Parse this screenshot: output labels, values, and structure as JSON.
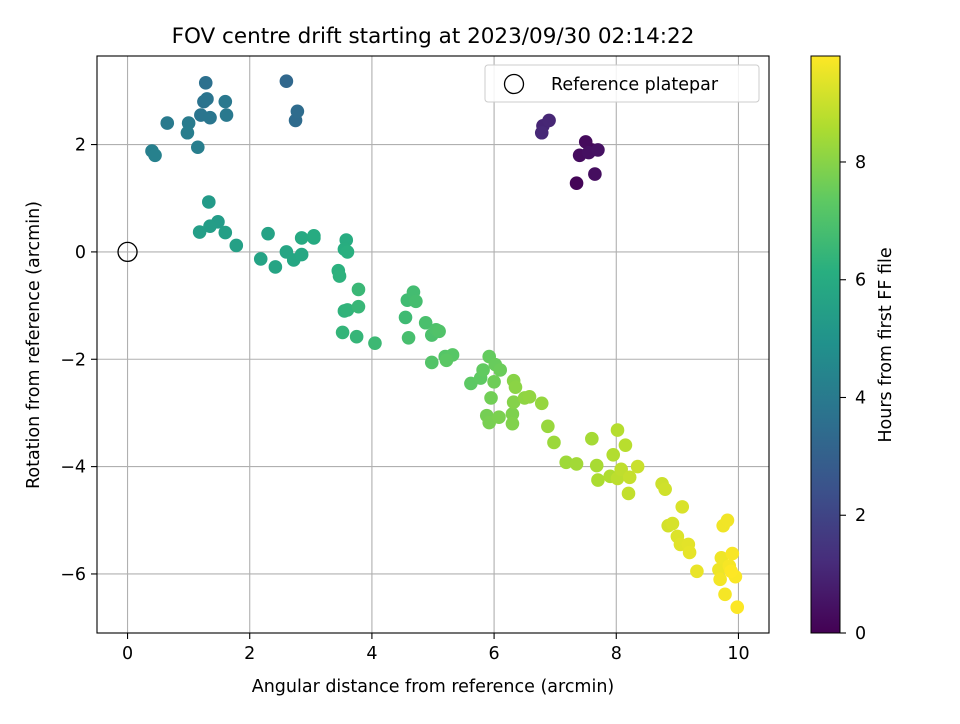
{
  "chart_data": {
    "type": "scatter",
    "title": "FOV centre drift starting at 2023/09/30 02:14:22",
    "xlabel": "Angular distance from reference (arcmin)",
    "ylabel": "Rotation from reference (arcmin)",
    "xlim": [
      -0.5,
      10.5
    ],
    "ylim": [
      -7.1,
      3.65
    ],
    "x_ticks": [
      0,
      2,
      4,
      6,
      8,
      10
    ],
    "y_ticks": [
      -6,
      -4,
      -2,
      0,
      2
    ],
    "grid": true,
    "legend_position": "top-right",
    "colorbar": {
      "label": "Hours from first FF file",
      "colormap": "viridis",
      "range": [
        0,
        9.8
      ],
      "ticks": [
        0,
        2,
        4,
        6,
        8
      ]
    },
    "reference": {
      "label": "Reference platepar",
      "x": 0,
      "y": 0
    },
    "points": [
      {
        "x": 7.35,
        "y": 1.28,
        "h": 0.1
      },
      {
        "x": 7.6,
        "y": 1.9,
        "h": 0.2
      },
      {
        "x": 7.5,
        "y": 2.05,
        "h": 0.25
      },
      {
        "x": 7.4,
        "y": 1.8,
        "h": 0.3
      },
      {
        "x": 7.65,
        "y": 1.45,
        "h": 0.35
      },
      {
        "x": 7.55,
        "y": 1.85,
        "h": 0.4
      },
      {
        "x": 7.7,
        "y": 1.9,
        "h": 0.45
      },
      {
        "x": 6.8,
        "y": 2.35,
        "h": 1.0
      },
      {
        "x": 6.9,
        "y": 2.45,
        "h": 1.05
      },
      {
        "x": 6.78,
        "y": 2.22,
        "h": 1.1
      },
      {
        "x": 2.6,
        "y": 3.18,
        "h": 3.3
      },
      {
        "x": 2.75,
        "y": 2.45,
        "h": 3.4
      },
      {
        "x": 2.78,
        "y": 2.62,
        "h": 3.45
      },
      {
        "x": 1.28,
        "y": 3.15,
        "h": 3.6
      },
      {
        "x": 1.25,
        "y": 2.8,
        "h": 3.7
      },
      {
        "x": 1.3,
        "y": 2.85,
        "h": 3.75
      },
      {
        "x": 1.2,
        "y": 2.55,
        "h": 3.8
      },
      {
        "x": 1.35,
        "y": 2.5,
        "h": 3.85
      },
      {
        "x": 1.6,
        "y": 2.8,
        "h": 3.9
      },
      {
        "x": 1.62,
        "y": 2.55,
        "h": 3.95
      },
      {
        "x": 0.65,
        "y": 2.4,
        "h": 4.0
      },
      {
        "x": 1.0,
        "y": 2.4,
        "h": 4.05
      },
      {
        "x": 0.98,
        "y": 2.22,
        "h": 4.1
      },
      {
        "x": 1.15,
        "y": 1.95,
        "h": 4.15
      },
      {
        "x": 0.4,
        "y": 1.88,
        "h": 4.2
      },
      {
        "x": 0.45,
        "y": 1.8,
        "h": 4.25
      },
      {
        "x": 1.33,
        "y": 0.93,
        "h": 5.3
      },
      {
        "x": 1.48,
        "y": 0.56,
        "h": 5.35
      },
      {
        "x": 1.35,
        "y": 0.48,
        "h": 5.4
      },
      {
        "x": 1.18,
        "y": 0.37,
        "h": 5.45
      },
      {
        "x": 1.6,
        "y": 0.36,
        "h": 5.5
      },
      {
        "x": 1.78,
        "y": 0.12,
        "h": 5.55
      },
      {
        "x": 2.3,
        "y": 0.34,
        "h": 5.6
      },
      {
        "x": 2.18,
        "y": -0.13,
        "h": 5.65
      },
      {
        "x": 2.42,
        "y": -0.28,
        "h": 5.7
      },
      {
        "x": 2.6,
        "y": 0.0,
        "h": 5.75
      },
      {
        "x": 2.72,
        "y": -0.15,
        "h": 5.8
      },
      {
        "x": 2.85,
        "y": -0.05,
        "h": 5.85
      },
      {
        "x": 2.85,
        "y": 0.26,
        "h": 5.9
      },
      {
        "x": 3.05,
        "y": 0.26,
        "h": 5.95
      },
      {
        "x": 3.05,
        "y": 0.3,
        "h": 6.0
      },
      {
        "x": 3.58,
        "y": 0.22,
        "h": 6.05
      },
      {
        "x": 3.55,
        "y": 0.05,
        "h": 6.1
      },
      {
        "x": 3.6,
        "y": 0.0,
        "h": 6.15
      },
      {
        "x": 3.45,
        "y": -0.35,
        "h": 6.2
      },
      {
        "x": 3.47,
        "y": -0.45,
        "h": 6.25
      },
      {
        "x": 3.55,
        "y": -1.1,
        "h": 6.3
      },
      {
        "x": 3.6,
        "y": -1.08,
        "h": 6.35
      },
      {
        "x": 3.52,
        "y": -1.5,
        "h": 6.4
      },
      {
        "x": 3.75,
        "y": -1.58,
        "h": 6.45
      },
      {
        "x": 3.78,
        "y": -1.02,
        "h": 6.5
      },
      {
        "x": 3.78,
        "y": -0.7,
        "h": 6.55
      },
      {
        "x": 4.05,
        "y": -1.7,
        "h": 6.6
      },
      {
        "x": 4.55,
        "y": -1.22,
        "h": 6.65
      },
      {
        "x": 4.58,
        "y": -0.9,
        "h": 6.7
      },
      {
        "x": 4.68,
        "y": -0.75,
        "h": 6.75
      },
      {
        "x": 4.72,
        "y": -0.92,
        "h": 6.8
      },
      {
        "x": 4.6,
        "y": -1.6,
        "h": 6.85
      },
      {
        "x": 4.88,
        "y": -1.32,
        "h": 6.9
      },
      {
        "x": 4.98,
        "y": -1.55,
        "h": 6.95
      },
      {
        "x": 5.05,
        "y": -1.45,
        "h": 7.0
      },
      {
        "x": 5.1,
        "y": -1.48,
        "h": 7.05
      },
      {
        "x": 4.98,
        "y": -2.06,
        "h": 7.1
      },
      {
        "x": 5.2,
        "y": -1.95,
        "h": 7.15
      },
      {
        "x": 5.32,
        "y": -1.92,
        "h": 7.2
      },
      {
        "x": 5.22,
        "y": -2.02,
        "h": 7.25
      },
      {
        "x": 5.62,
        "y": -2.45,
        "h": 7.3
      },
      {
        "x": 5.78,
        "y": -2.35,
        "h": 7.35
      },
      {
        "x": 5.82,
        "y": -2.2,
        "h": 7.4
      },
      {
        "x": 5.92,
        "y": -1.95,
        "h": 7.45
      },
      {
        "x": 6.02,
        "y": -2.1,
        "h": 7.5
      },
      {
        "x": 6.1,
        "y": -2.2,
        "h": 7.55
      },
      {
        "x": 6.0,
        "y": -2.42,
        "h": 7.6
      },
      {
        "x": 5.95,
        "y": -2.72,
        "h": 7.65
      },
      {
        "x": 5.88,
        "y": -3.05,
        "h": 7.7
      },
      {
        "x": 5.92,
        "y": -3.18,
        "h": 7.75
      },
      {
        "x": 6.08,
        "y": -3.08,
        "h": 7.8
      },
      {
        "x": 6.3,
        "y": -3.02,
        "h": 7.85
      },
      {
        "x": 6.3,
        "y": -3.2,
        "h": 7.9
      },
      {
        "x": 6.32,
        "y": -2.8,
        "h": 7.95
      },
      {
        "x": 6.32,
        "y": -2.4,
        "h": 8.0
      },
      {
        "x": 6.35,
        "y": -2.52,
        "h": 8.05
      },
      {
        "x": 6.5,
        "y": -2.72,
        "h": 8.1
      },
      {
        "x": 6.58,
        "y": -2.7,
        "h": 8.15
      },
      {
        "x": 6.78,
        "y": -2.82,
        "h": 8.2
      },
      {
        "x": 6.88,
        "y": -3.25,
        "h": 8.25
      },
      {
        "x": 6.98,
        "y": -3.55,
        "h": 8.3
      },
      {
        "x": 7.18,
        "y": -3.92,
        "h": 8.35
      },
      {
        "x": 7.35,
        "y": -3.95,
        "h": 8.4
      },
      {
        "x": 7.6,
        "y": -3.48,
        "h": 8.45
      },
      {
        "x": 7.68,
        "y": -3.98,
        "h": 8.5
      },
      {
        "x": 7.7,
        "y": -4.25,
        "h": 8.55
      },
      {
        "x": 7.9,
        "y": -4.18,
        "h": 8.6
      },
      {
        "x": 7.95,
        "y": -3.78,
        "h": 8.65
      },
      {
        "x": 8.02,
        "y": -3.32,
        "h": 8.7
      },
      {
        "x": 8.15,
        "y": -3.6,
        "h": 8.75
      },
      {
        "x": 8.02,
        "y": -4.22,
        "h": 8.8
      },
      {
        "x": 8.08,
        "y": -4.05,
        "h": 8.85
      },
      {
        "x": 8.2,
        "y": -4.5,
        "h": 8.9
      },
      {
        "x": 8.22,
        "y": -4.2,
        "h": 8.95
      },
      {
        "x": 8.35,
        "y": -4.0,
        "h": 9.0
      },
      {
        "x": 8.75,
        "y": -4.32,
        "h": 9.05
      },
      {
        "x": 8.8,
        "y": -4.42,
        "h": 9.1
      },
      {
        "x": 8.85,
        "y": -5.1,
        "h": 9.15
      },
      {
        "x": 8.92,
        "y": -5.06,
        "h": 9.2
      },
      {
        "x": 9.08,
        "y": -4.75,
        "h": 9.25
      },
      {
        "x": 9.0,
        "y": -5.3,
        "h": 9.3
      },
      {
        "x": 9.05,
        "y": -5.45,
        "h": 9.35
      },
      {
        "x": 9.18,
        "y": -5.45,
        "h": 9.4
      },
      {
        "x": 9.2,
        "y": -5.6,
        "h": 9.45
      },
      {
        "x": 9.32,
        "y": -5.95,
        "h": 9.5
      },
      {
        "x": 9.68,
        "y": -5.92,
        "h": 9.55
      },
      {
        "x": 9.72,
        "y": -5.7,
        "h": 9.58
      },
      {
        "x": 9.75,
        "y": -5.1,
        "h": 9.6
      },
      {
        "x": 9.82,
        "y": -5.0,
        "h": 9.62
      },
      {
        "x": 9.7,
        "y": -6.1,
        "h": 9.65
      },
      {
        "x": 9.78,
        "y": -6.38,
        "h": 9.68
      },
      {
        "x": 9.85,
        "y": -5.85,
        "h": 9.7
      },
      {
        "x": 9.9,
        "y": -5.62,
        "h": 9.72
      },
      {
        "x": 9.95,
        "y": -6.05,
        "h": 9.75
      },
      {
        "x": 9.98,
        "y": -6.62,
        "h": 9.78
      },
      {
        "x": 9.88,
        "y": -5.95,
        "h": 9.8
      }
    ]
  }
}
